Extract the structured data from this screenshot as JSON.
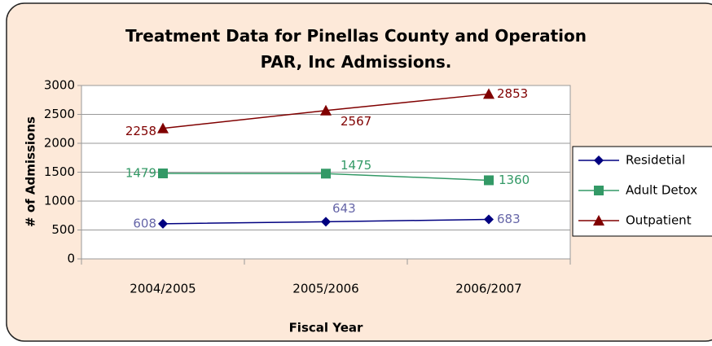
{
  "chart_data": {
    "type": "line",
    "title": "Treatment Data for Pinellas County and Operation PAR, Inc Admissions.",
    "x_label": "Fiscal Year",
    "y_label": "# of Admissions",
    "categories": [
      "2004/2005",
      "2005/2006",
      "2006/2007"
    ],
    "series": [
      {
        "name": "Residetial",
        "color": "#000080",
        "label_color": "#6666a8",
        "marker": "diamond",
        "values": [
          608,
          643,
          683
        ]
      },
      {
        "name": "Adult Detox",
        "color": "#339966",
        "label_color": "#339966",
        "marker": "square",
        "values": [
          1479,
          1475,
          1360
        ]
      },
      {
        "name": "Outpatient",
        "color": "#800000",
        "label_color": "#800000",
        "marker": "triangle",
        "values": [
          2258,
          2567,
          2853
        ]
      }
    ],
    "ylim": [
      0,
      3000
    ],
    "yticks": [
      0,
      500,
      1000,
      1500,
      2000,
      2500,
      3000
    ],
    "grid": true,
    "legend": "right"
  }
}
